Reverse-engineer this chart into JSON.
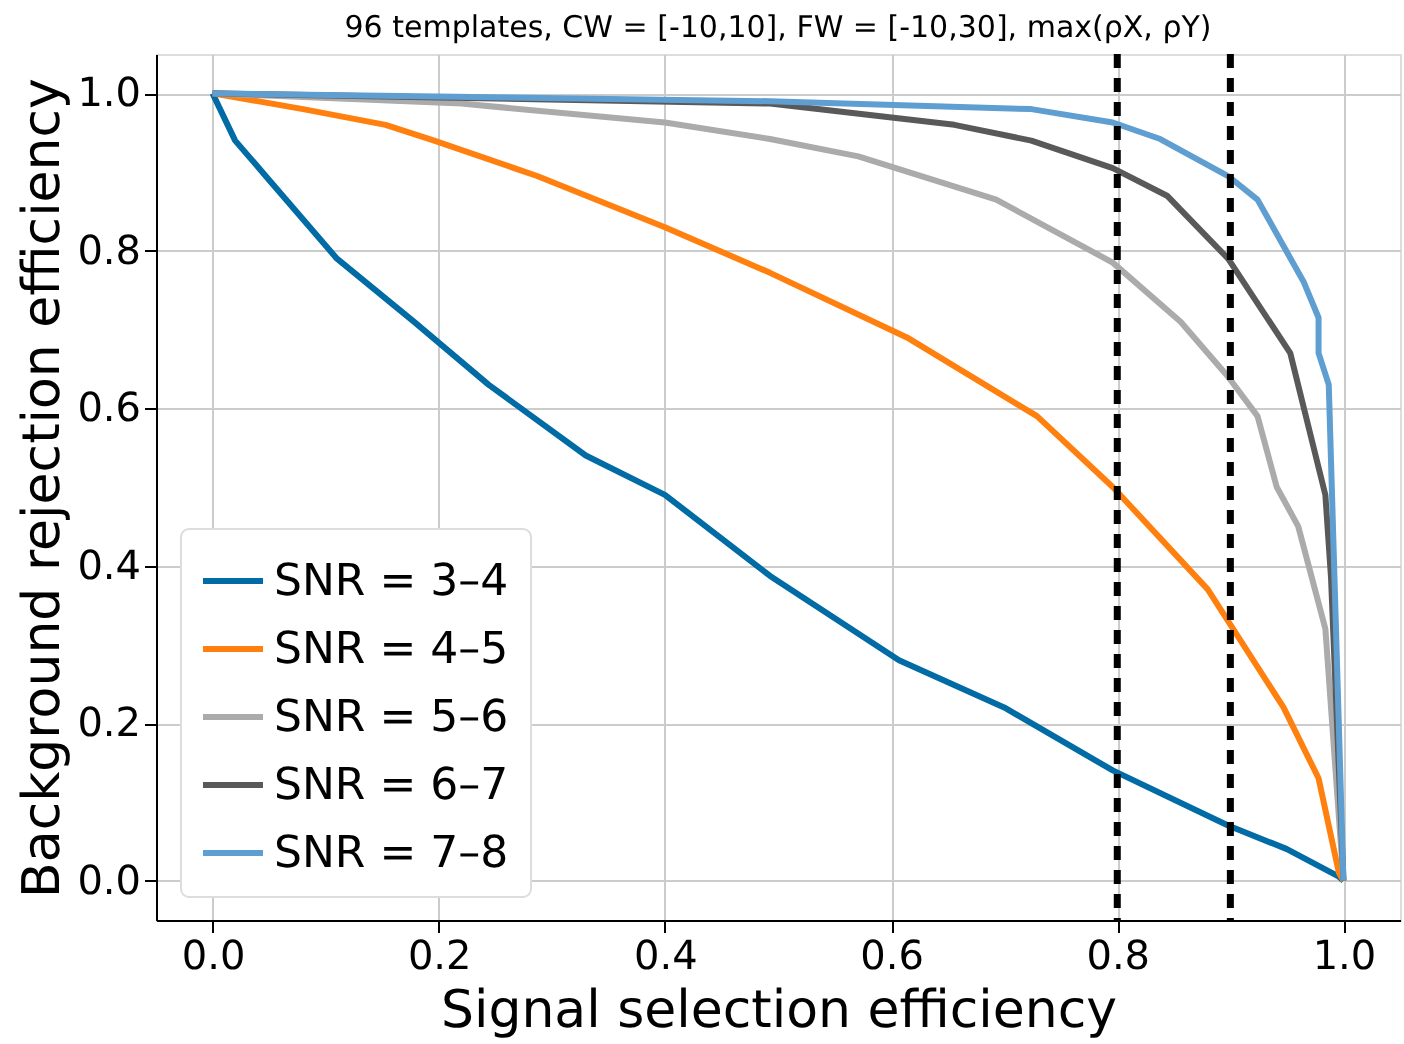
{
  "chart_data": {
    "type": "line",
    "title": "96 templates, CW = [-10,10], FW = [-10,30], max(ρX, ρY)",
    "xlabel": "Signal selection efficiency",
    "ylabel": "Background rejection efficiency",
    "xlim": [
      -0.05,
      1.05
    ],
    "ylim": [
      -0.05,
      1.05
    ],
    "xticks": [
      {
        "value": 0,
        "label": "0.0"
      },
      {
        "value": 0.2,
        "label": "0.2"
      },
      {
        "value": 0.4,
        "label": "0.4"
      },
      {
        "value": 0.6,
        "label": "0.6"
      },
      {
        "value": 0.8,
        "label": "0.8"
      },
      {
        "value": 1,
        "label": "1.0"
      }
    ],
    "yticks": [
      {
        "value": 0,
        "label": "0.0"
      },
      {
        "value": 0.2,
        "label": "0.2"
      },
      {
        "value": 0.4,
        "label": "0.4"
      },
      {
        "value": 0.6,
        "label": "0.6"
      },
      {
        "value": 0.8,
        "label": "0.8"
      },
      {
        "value": 1,
        "label": "1.0"
      }
    ],
    "grid": true,
    "legend": "bottom left",
    "marker": "none",
    "line_style": "solid",
    "series": [
      {
        "name": "SNR = 3–4",
        "color": "#006ba4",
        "x": [
          0,
          0.02,
          0.05,
          0.11,
          0.178,
          0.244,
          0.33,
          0.4,
          0.493,
          0.607,
          0.7,
          0.796,
          0.898,
          0.95,
          0.996,
          1.0
        ],
        "values": [
          1,
          0.94,
          0.89,
          0.79,
          0.71,
          0.63,
          0.54,
          0.49,
          0.387,
          0.28,
          0.22,
          0.14,
          0.07,
          0.04,
          0.005,
          0.0
        ]
      },
      {
        "name": "SNR = 4–5",
        "color": "#ff800e",
        "x": [
          0,
          0.08,
          0.153,
          0.196,
          0.287,
          0.4,
          0.493,
          0.614,
          0.729,
          0.796,
          0.88,
          0.947,
          0.978,
          0.996,
          1.0
        ],
        "values": [
          1,
          0.98,
          0.96,
          0.94,
          0.895,
          0.83,
          0.772,
          0.69,
          0.59,
          0.5,
          0.37,
          0.22,
          0.13,
          0.01,
          0.0
        ]
      },
      {
        "name": "SNR = 5–6",
        "color": "#ababab",
        "x": [
          0,
          0.22,
          0.4,
          0.493,
          0.571,
          0.693,
          0.796,
          0.856,
          0.898,
          0.924,
          0.941,
          0.96,
          0.984,
          1.0
        ],
        "values": [
          1,
          0.987,
          0.963,
          0.942,
          0.92,
          0.865,
          0.785,
          0.71,
          0.64,
          0.59,
          0.5,
          0.45,
          0.32,
          0.0
        ]
      },
      {
        "name": "SNR = 6–7",
        "color": "#595959",
        "x": [
          0,
          0.493,
          0.656,
          0.724,
          0.796,
          0.844,
          0.898,
          0.953,
          0.984,
          0.989,
          1.0
        ],
        "values": [
          1,
          0.987,
          0.96,
          0.94,
          0.905,
          0.87,
          0.79,
          0.67,
          0.49,
          0.385,
          0.0
        ]
      },
      {
        "name": "SNR = 7–8",
        "color": "#5f9ed1",
        "x": [
          0,
          0.493,
          0.724,
          0.796,
          0.838,
          0.898,
          0.924,
          0.965,
          0.978,
          0.978,
          0.987,
          1.0
        ],
        "values": [
          1,
          0.99,
          0.98,
          0.963,
          0.942,
          0.895,
          0.865,
          0.76,
          0.715,
          0.67,
          0.63,
          0.0
        ]
      }
    ],
    "ref_lines": [
      {
        "axis": "x",
        "value": 0.8,
        "color": "#000000",
        "line_style": "dashed"
      },
      {
        "axis": "x",
        "value": 0.9,
        "color": "#000000",
        "line_style": "dashed"
      }
    ]
  }
}
